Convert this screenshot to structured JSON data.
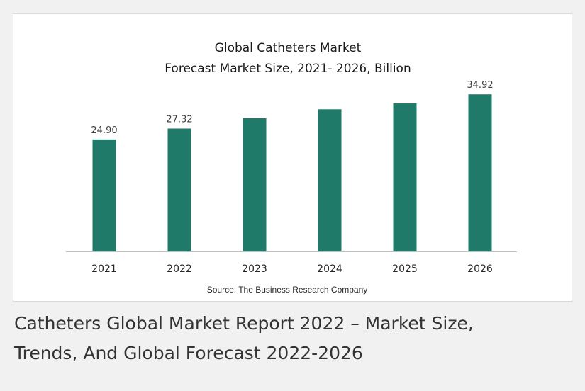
{
  "chart_data": {
    "type": "bar",
    "title": "Global Catheters Market",
    "subtitle": "Forecast Market Size, 2021- 2026, Billion",
    "categories": [
      "2021",
      "2022",
      "2023",
      "2024",
      "2025",
      "2026"
    ],
    "values": [
      24.9,
      27.32,
      29.6,
      31.6,
      32.9,
      34.92
    ],
    "data_labels": [
      "24.90",
      "27.32",
      "",
      "",
      "",
      "34.92"
    ],
    "xlabel": "",
    "ylabel": "",
    "ylim": [
      0,
      37
    ],
    "grid": false,
    "bar_color": "#1f7a6a",
    "source": "Source: The Business Research Company"
  },
  "caption": {
    "line1": "Catheters Global Market Report 2022 – Market Size,",
    "line2": "Trends, And Global Forecast 2022-2026"
  }
}
